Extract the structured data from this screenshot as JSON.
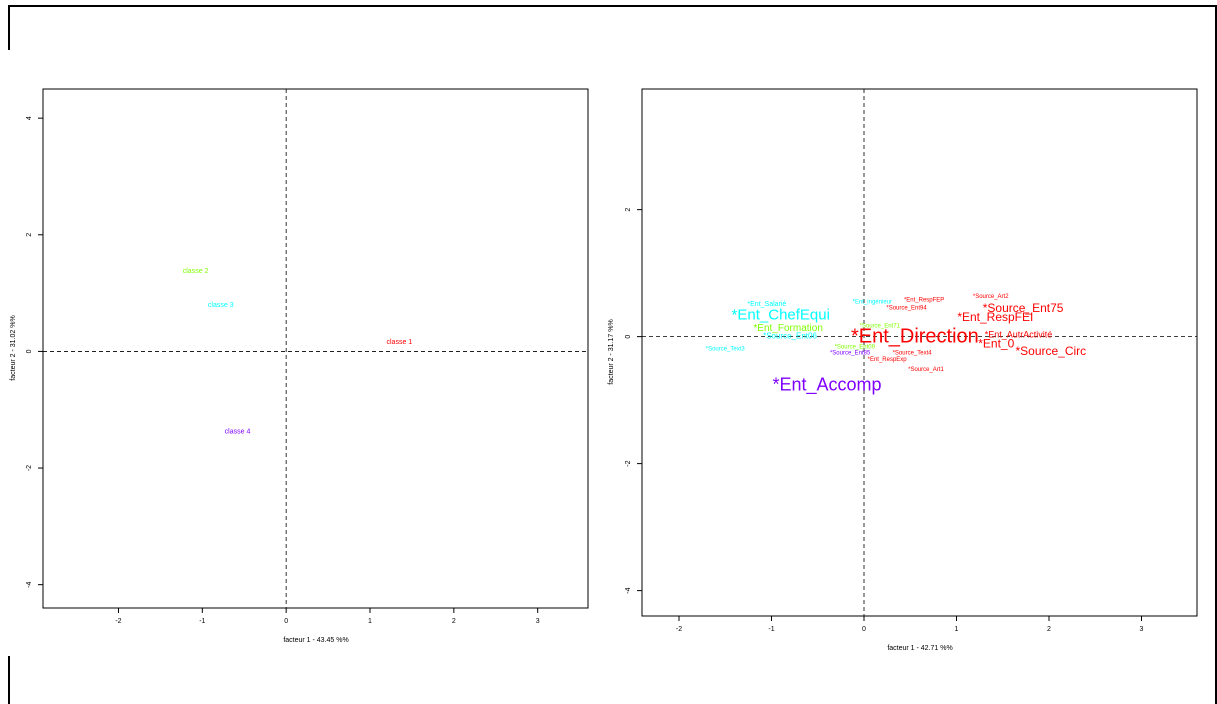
{
  "chart_data": [
    {
      "type": "scatter",
      "title": "",
      "xlabel": "facteur  1  - 43.45 %%",
      "ylabel": "facteur  2  - 31.02 %%",
      "xlim": [
        -2.9,
        3.6
      ],
      "ylim": [
        -4.4,
        4.5
      ],
      "xticks": [
        -2,
        -1,
        0,
        1,
        2,
        3
      ],
      "yticks": [
        -4,
        -2,
        0,
        2,
        4
      ],
      "grid": false,
      "reference_lines": [
        0
      ],
      "points": [
        {
          "label": "classe 1",
          "x": 1.35,
          "y": 0.16,
          "color": "#ff0000",
          "size": 7
        },
        {
          "label": "classe 2",
          "x": -1.08,
          "y": 1.38,
          "color": "#7fff00",
          "size": 7
        },
        {
          "label": "classe 3",
          "x": -0.78,
          "y": 0.79,
          "color": "#00ffff",
          "size": 7
        },
        {
          "label": "classe 4",
          "x": -0.58,
          "y": -1.38,
          "color": "#8000ff",
          "size": 7
        }
      ]
    },
    {
      "type": "scatter",
      "title": "",
      "xlabel": "facteur  1  - 42.71 %%",
      "ylabel": "facteur  2  - 31.17 %%",
      "xlim": [
        -2.4,
        3.6
      ],
      "ylim": [
        -4.4,
        3.9
      ],
      "xticks": [
        -2,
        -1,
        0,
        1,
        2,
        3
      ],
      "yticks": [
        -4,
        -2,
        0,
        2
      ],
      "grid": false,
      "reference_lines": [
        0
      ],
      "points": [
        {
          "label": "*Ent_ChefEqui",
          "x": -0.9,
          "y": 0.33,
          "color": "#00ffff",
          "size": 15
        },
        {
          "label": "*Ent_Salarié",
          "x": -1.05,
          "y": 0.51,
          "color": "#00ffff",
          "size": 7
        },
        {
          "label": "*Ent_Formation",
          "x": -0.82,
          "y": 0.13,
          "color": "#7fff00",
          "size": 10
        },
        {
          "label": "*Source_Ent06",
          "x": -0.8,
          "y": 0.0,
          "color": "#00ffff",
          "size": 8
        },
        {
          "label": "*Source_Text3",
          "x": -1.5,
          "y": -0.19,
          "color": "#00ffff",
          "size": 6
        },
        {
          "label": "*Ent_Accomp",
          "x": -0.4,
          "y": -0.77,
          "color": "#8000ff",
          "size": 18
        },
        {
          "label": "*Ent_Direction",
          "x": 0.55,
          "y": -0.01,
          "color": "#ff0000",
          "size": 20
        },
        {
          "label": "*Ent_ingénieur",
          "x": 0.09,
          "y": 0.55,
          "color": "#00ffff",
          "size": 6
        },
        {
          "label": "*Ent_RespFEP",
          "x": 0.65,
          "y": 0.58,
          "color": "#ff0000",
          "size": 6
        },
        {
          "label": "*Source_Ent94",
          "x": 0.46,
          "y": 0.45,
          "color": "#ff0000",
          "size": 6
        },
        {
          "label": "*Source_Ent71",
          "x": 0.17,
          "y": 0.17,
          "color": "#7fff00",
          "size": 6
        },
        {
          "label": "*Source_Ent09",
          "x": -0.1,
          "y": -0.16,
          "color": "#7fff00",
          "size": 6
        },
        {
          "label": "*Source_Ent85",
          "x": -0.15,
          "y": -0.26,
          "color": "#8000ff",
          "size": 6
        },
        {
          "label": "*Source_Text4",
          "x": 0.52,
          "y": -0.26,
          "color": "#ff0000",
          "size": 6
        },
        {
          "label": "*Ent_RespExp",
          "x": 0.25,
          "y": -0.36,
          "color": "#ff0000",
          "size": 6
        },
        {
          "label": "*Source_Art1",
          "x": 0.67,
          "y": -0.52,
          "color": "#ff0000",
          "size": 6
        },
        {
          "label": "*Source_Art2",
          "x": 1.37,
          "y": 0.63,
          "color": "#ff0000",
          "size": 6
        },
        {
          "label": "*Source_Ent75",
          "x": 1.72,
          "y": 0.44,
          "color": "#ff0000",
          "size": 12
        },
        {
          "label": "*Ent_RespFEI",
          "x": 1.42,
          "y": 0.3,
          "color": "#ff0000",
          "size": 12
        },
        {
          "label": "*Ent_AutrActivité",
          "x": 1.67,
          "y": 0.02,
          "color": "#ff0000",
          "size": 9
        },
        {
          "label": "*Ent_0",
          "x": 1.43,
          "y": -0.12,
          "color": "#ff0000",
          "size": 12
        },
        {
          "label": "*Source_Circ",
          "x": 2.02,
          "y": -0.24,
          "color": "#ff0000",
          "size": 12
        }
      ]
    }
  ]
}
